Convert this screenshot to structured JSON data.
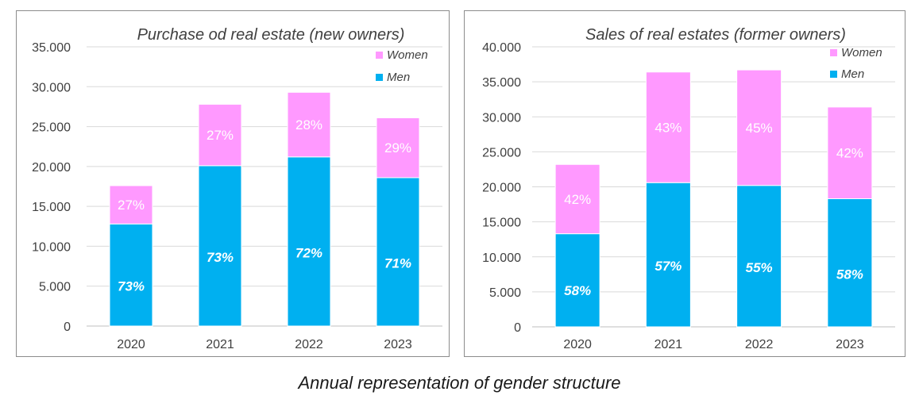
{
  "colors": {
    "men": "#00b0f0",
    "women": "#ff99ff",
    "grid": "#d9d9d9",
    "axis_text": "#404040"
  },
  "caption": "Annual representation of gender structure",
  "chart_data": [
    {
      "type": "bar",
      "stacked": true,
      "title": "Purchase od real estate (new owners)",
      "categories": [
        "2020",
        "2021",
        "2022",
        "2023"
      ],
      "ylim": [
        0,
        35000
      ],
      "yticks": [
        0,
        5000,
        10000,
        15000,
        20000,
        25000,
        30000,
        35000
      ],
      "ytick_labels": [
        "0",
        "5.000",
        "10.000",
        "15.000",
        "20.000",
        "25.000",
        "30.000",
        "35.000"
      ],
      "grid": true,
      "legend": "top-right",
      "series": [
        {
          "name": "Men",
          "color": "#00b0f0",
          "values": [
            12800,
            20100,
            21200,
            18600
          ],
          "labels": [
            "73%",
            "73%",
            "72%",
            "71%"
          ]
        },
        {
          "name": "Women",
          "color": "#ff99ff",
          "values": [
            4800,
            7700,
            8100,
            7500
          ],
          "labels": [
            "27%",
            "27%",
            "28%",
            "29%"
          ]
        }
      ]
    },
    {
      "type": "bar",
      "stacked": true,
      "title": "Sales of real estates (former owners)",
      "categories": [
        "2020",
        "2021",
        "2022",
        "2023"
      ],
      "ylim": [
        0,
        40000
      ],
      "yticks": [
        0,
        5000,
        10000,
        15000,
        20000,
        25000,
        30000,
        35000,
        40000
      ],
      "ytick_labels": [
        "0",
        "5.000",
        "10.000",
        "15.000",
        "20.000",
        "25.000",
        "30.000",
        "35.000",
        "40.000"
      ],
      "grid": true,
      "legend": "top-right",
      "series": [
        {
          "name": "Men",
          "color": "#00b0f0",
          "values": [
            13300,
            20600,
            20200,
            18300
          ],
          "labels": [
            "58%",
            "57%",
            "55%",
            "58%"
          ]
        },
        {
          "name": "Women",
          "color": "#ff99ff",
          "values": [
            9900,
            15800,
            16500,
            13100
          ],
          "labels": [
            "42%",
            "43%",
            "45%",
            "42%"
          ]
        }
      ]
    }
  ]
}
